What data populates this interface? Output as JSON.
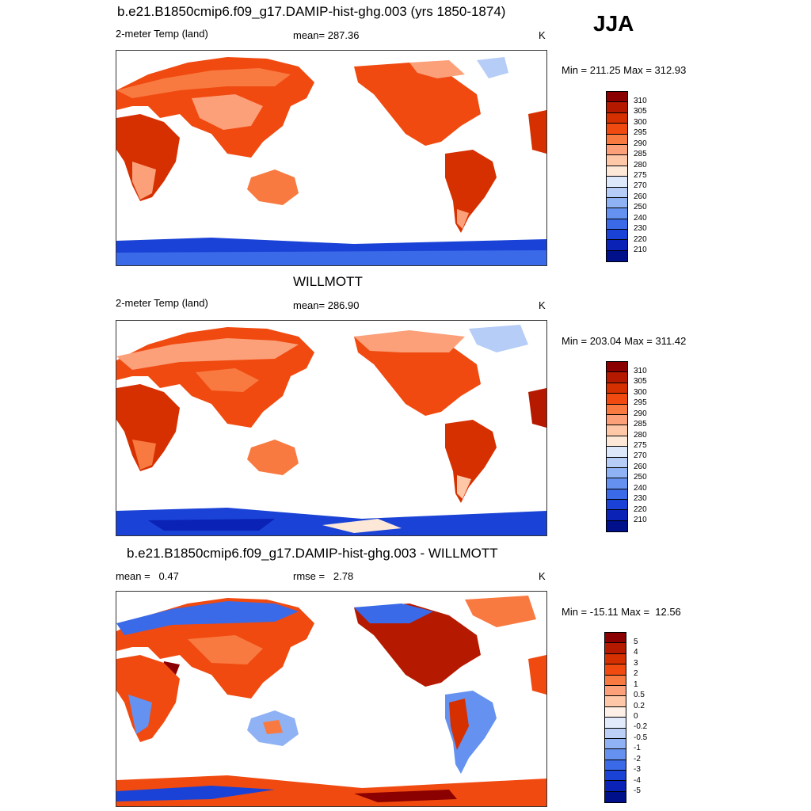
{
  "season": "JJA",
  "units_label": "K",
  "panels": [
    {
      "title": "b.e21.B1850cmip6.f09_g17.DAMIP-hist-ghg.003 (yrs 1850-1874)",
      "left_label": "2-meter Temp (land)",
      "center_label": "mean= 287.36",
      "right_label": "K",
      "minmax": "Min = 211.25 Max = 312.93",
      "colorbar_labels": [
        "310",
        "305",
        "300",
        "295",
        "290",
        "285",
        "280",
        "275",
        "270",
        "260",
        "250",
        "240",
        "230",
        "220",
        "210"
      ],
      "colorbar_colors": [
        "#8b0000",
        "#b51a00",
        "#d63000",
        "#f04a10",
        "#f87a40",
        "#fca07a",
        "#fdc7a8",
        "#fde8d8",
        "#dde8fb",
        "#b5cdf7",
        "#8fb2f5",
        "#6592f0",
        "#3a6ae8",
        "#1a42d6",
        "#0a22b5",
        "#000f8a"
      ]
    },
    {
      "title": "WILLMOTT",
      "left_label": "2-meter Temp (land)",
      "center_label": "mean= 286.90",
      "right_label": "K",
      "minmax": "Min = 203.04 Max = 311.42",
      "colorbar_labels": [
        "310",
        "305",
        "300",
        "295",
        "290",
        "285",
        "280",
        "275",
        "270",
        "260",
        "250",
        "240",
        "230",
        "220",
        "210"
      ],
      "colorbar_colors": [
        "#8b0000",
        "#b51a00",
        "#d63000",
        "#f04a10",
        "#f87a40",
        "#fca07a",
        "#fdc7a8",
        "#fde8d8",
        "#dde8fb",
        "#b5cdf7",
        "#8fb2f5",
        "#6592f0",
        "#3a6ae8",
        "#1a42d6",
        "#0a22b5",
        "#000f8a"
      ]
    },
    {
      "title": "b.e21.B1850cmip6.f09_g17.DAMIP-hist-ghg.003 - WILLMOTT",
      "left_label": "mean =   0.47",
      "center_label": "rmse =   2.78",
      "right_label": "K",
      "minmax": "Min = -15.11 Max =  12.56",
      "colorbar_labels": [
        "5",
        "4",
        "3",
        "2",
        "1",
        "0.5",
        "0.2",
        "0",
        "-0.2",
        "-0.5",
        "-1",
        "-2",
        "-3",
        "-4",
        "-5"
      ],
      "colorbar_colors": [
        "#8b0000",
        "#b51a00",
        "#d63000",
        "#f04a10",
        "#f87a40",
        "#fca07a",
        "#fdc7a8",
        "#fef0e6",
        "#e2ebfb",
        "#bcd0f7",
        "#8fb2f5",
        "#6592f0",
        "#3a6ae8",
        "#1a42d6",
        "#0a22b5",
        "#000f8a"
      ]
    }
  ],
  "palettes": {
    "abs_land": [
      "#d63000",
      "#f04a10",
      "#f87a40",
      "#fca07a"
    ],
    "abs_polar": [
      "#1a42d6",
      "#3a6ae8",
      "#0a22b5"
    ],
    "diff_land": [
      "#f04a10",
      "#f87a40",
      "#3a6ae8",
      "#fca07a"
    ]
  }
}
